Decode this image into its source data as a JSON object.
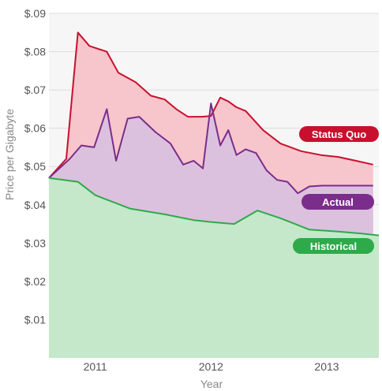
{
  "chart_data": {
    "type": "area",
    "xlabel": "Year",
    "ylabel": "Price per Gigabyte",
    "y_tick_labels": [
      "$.01",
      "$.02",
      "$.03",
      "$.04",
      "$.05",
      "$.06",
      "$.07",
      "$.08",
      "$.09"
    ],
    "y_ticks": [
      0.01,
      0.02,
      0.03,
      0.04,
      0.05,
      0.06,
      0.07,
      0.08,
      0.09
    ],
    "ylim": [
      0.0,
      0.09
    ],
    "xlim": [
      2010.6,
      2013.45
    ],
    "x_tick_labels": [
      "2011",
      "2012",
      "2013"
    ],
    "x_ticks": [
      2011.0,
      2012.0,
      2013.0
    ],
    "grid": true,
    "series": [
      {
        "name": "Status Quo",
        "color": "#c8102e",
        "fill": "#f7c5cc",
        "x": [
          2010.6,
          2010.75,
          2010.85,
          2010.95,
          2011.1,
          2011.2,
          2011.35,
          2011.48,
          2011.6,
          2011.7,
          2011.8,
          2011.92,
          2012.0,
          2012.08,
          2012.15,
          2012.22,
          2012.3,
          2012.45,
          2012.6,
          2012.78,
          2012.95,
          2013.1,
          2013.25,
          2013.4
        ],
        "values": [
          0.047,
          0.052,
          0.085,
          0.0815,
          0.08,
          0.0745,
          0.072,
          0.0685,
          0.0675,
          0.065,
          0.063,
          0.063,
          0.0632,
          0.068,
          0.067,
          0.0655,
          0.0645,
          0.0595,
          0.056,
          0.054,
          0.053,
          0.0525,
          0.0515,
          0.0505
        ]
      },
      {
        "name": "Actual",
        "color": "#7b2d8b",
        "fill": "#dcc1de",
        "x": [
          2010.6,
          2010.78,
          2010.88,
          2010.99,
          2011.1,
          2011.18,
          2011.28,
          2011.38,
          2011.52,
          2011.65,
          2011.76,
          2011.85,
          2011.93,
          2012.0,
          2012.08,
          2012.15,
          2012.22,
          2012.3,
          2012.39,
          2012.48,
          2012.57,
          2012.66,
          2012.75,
          2012.85,
          2012.96,
          2013.05,
          2013.15,
          2013.25,
          2013.35,
          2013.4
        ],
        "values": [
          0.047,
          0.052,
          0.0555,
          0.055,
          0.065,
          0.0515,
          0.0625,
          0.063,
          0.059,
          0.056,
          0.0505,
          0.0515,
          0.0495,
          0.0665,
          0.0555,
          0.0595,
          0.053,
          0.0545,
          0.0535,
          0.049,
          0.0465,
          0.046,
          0.043,
          0.0448,
          0.045,
          0.045,
          0.045,
          0.045,
          0.045,
          0.045
        ]
      },
      {
        "name": "Historical",
        "color": "#2eaa4a",
        "fill": "#c4e8c9",
        "x": [
          2010.6,
          2010.85,
          2011.0,
          2011.3,
          2011.6,
          2011.85,
          2012.0,
          2012.2,
          2012.4,
          2012.6,
          2012.85,
          2013.1,
          2013.3,
          2013.45
        ],
        "values": [
          0.047,
          0.046,
          0.0425,
          0.039,
          0.0375,
          0.036,
          0.0355,
          0.035,
          0.0385,
          0.0365,
          0.0335,
          0.033,
          0.0325,
          0.032
        ]
      }
    ],
    "labels": [
      "Status Quo",
      "Actual",
      "Historical"
    ]
  }
}
